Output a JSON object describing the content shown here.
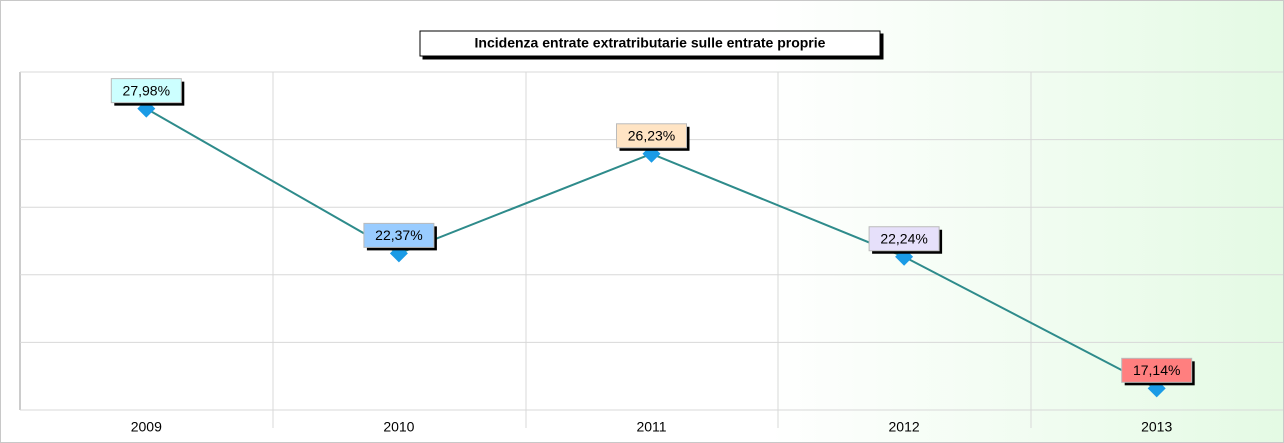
{
  "chart_data": {
    "type": "line",
    "title": "Incidenza entrate extratributarie sulle entrate proprie",
    "categories": [
      "2009",
      "2010",
      "2011",
      "2012",
      "2013"
    ],
    "series": [
      {
        "name": "Incidenza",
        "color": "#2e8b8b",
        "marker_color": "#1a9be6",
        "values": [
          27.98,
          22.37,
          26.23,
          22.24,
          17.14
        ],
        "value_labels": [
          "27,98%",
          "22,37%",
          "26,23%",
          "22,24%",
          "17,14%"
        ],
        "label_colors": [
          "#ccffff",
          "#99ccff",
          "#ffe4c4",
          "#e6e0fa",
          "#ff7f7f"
        ]
      }
    ],
    "ylim": [
      16.3,
      29.4
    ],
    "yticks": [
      16.3,
      18.92,
      21.54,
      24.16,
      26.78,
      29.4
    ],
    "grid": true
  }
}
